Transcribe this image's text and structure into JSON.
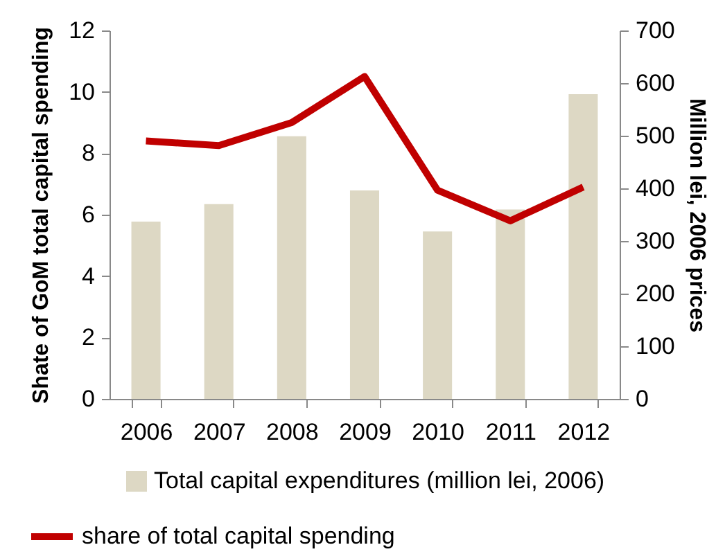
{
  "chart_data": {
    "type": "bar",
    "ylabel": "Shate of  GoM total capital spending",
    "y2label": "Million lei, 2006 prices",
    "categories": [
      "2006",
      "2007",
      "2008",
      "2009",
      "2010",
      "2011",
      "2012"
    ],
    "series": [
      {
        "name": "Total capital expenditures (million lei, 2006)",
        "axis": "y2",
        "color": "#ddd8c4",
        "values": [
          337,
          370,
          499,
          396,
          318,
          360,
          579
        ]
      },
      {
        "name": "share of total capital spending",
        "type": "line",
        "axis": "y",
        "color": "#c00000",
        "values": [
          8.4,
          8.25,
          9.0,
          10.5,
          6.8,
          5.8,
          6.9
        ]
      }
    ],
    "ylim": [
      0,
      12
    ],
    "yticks": [
      0,
      2,
      4,
      6,
      8,
      10,
      12
    ],
    "y2lim": [
      0,
      700
    ],
    "y2ticks": [
      0,
      100,
      200,
      300,
      400,
      500,
      600,
      700
    ],
    "legend": "bottom",
    "grid": false
  }
}
